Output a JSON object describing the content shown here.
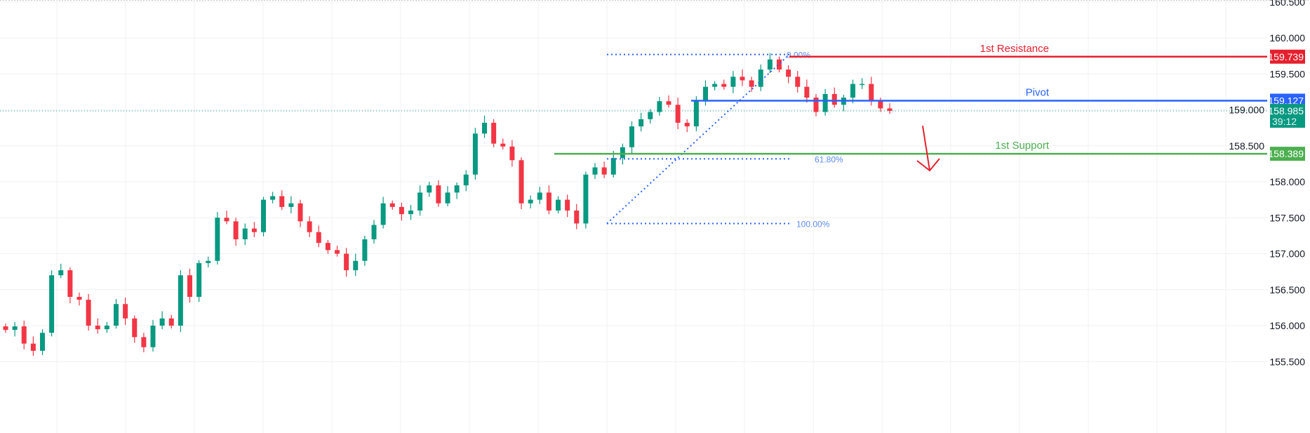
{
  "chart_data": {
    "type": "candlestick",
    "title": "",
    "ylim": [
      155.45,
      160.5
    ],
    "y_ticks": [
      "160.500",
      "160.000",
      "159.500",
      "159.000",
      "158.500",
      "158.000",
      "157.500",
      "157.000",
      "156.500",
      "156.000",
      "155.500"
    ],
    "y_tick_values": [
      160.5,
      160.0,
      159.5,
      159.0,
      158.5,
      158.0,
      157.5,
      157.0,
      156.5,
      156.0,
      155.5
    ],
    "grid": true,
    "closes": [
      155.94,
      155.99,
      155.75,
      155.65,
      155.9,
      156.7,
      156.77,
      156.4,
      156.36,
      156.0,
      155.95,
      156.0,
      156.3,
      156.1,
      155.84,
      155.7,
      156.0,
      156.1,
      156.0,
      156.7,
      156.4,
      156.87,
      156.9,
      157.5,
      157.45,
      157.2,
      157.35,
      157.3,
      157.75,
      157.8,
      157.65,
      157.7,
      157.45,
      157.3,
      157.15,
      157.05,
      157.0,
      156.77,
      156.9,
      157.2,
      157.4,
      157.7,
      157.65,
      157.55,
      157.6,
      157.85,
      157.95,
      157.7,
      157.85,
      157.95,
      158.1,
      158.67,
      158.82,
      158.53,
      158.49,
      158.3,
      157.7,
      157.75,
      157.85,
      157.6,
      157.75,
      157.6,
      157.42,
      158.1,
      158.2,
      158.1,
      158.33,
      158.48,
      158.77,
      158.87,
      158.97,
      159.12,
      159.07,
      158.82,
      158.77,
      159.12,
      159.32,
      159.36,
      159.32,
      159.46,
      159.41,
      159.32,
      159.56,
      159.7,
      159.56,
      159.46,
      159.32,
      159.17,
      158.97,
      159.22,
      159.07,
      159.17,
      159.36,
      159.36,
      159.12,
      159.02,
      158.985
    ],
    "levels": [
      {
        "name": "1st Resistance",
        "value": 159.739,
        "label": "159.739",
        "color": "#e5202e"
      },
      {
        "name": "Pivot",
        "value": 159.127,
        "label": "159.127",
        "color": "#2962ff"
      },
      {
        "name": "1st Support",
        "value": 158.389,
        "label": "158.389",
        "color": "#4caf50"
      }
    ],
    "fibonacci": {
      "high": 159.77,
      "low": 157.42,
      "color": "#2962ff",
      "levels": [
        {
          "ratio": 0.0,
          "label": "0.00%"
        },
        {
          "ratio": 0.618,
          "label": "61.80%"
        },
        {
          "ratio": 1.0,
          "label": "100.00%"
        }
      ]
    },
    "current_price": {
      "value": 158.985,
      "label": "158.985",
      "countdown": "39:12",
      "color": "#089981"
    },
    "up_color": "#089981",
    "down_color": "#f23645",
    "projection_arrow": {
      "from": 159.1,
      "to": 158.4,
      "color": "#e5202e"
    }
  }
}
